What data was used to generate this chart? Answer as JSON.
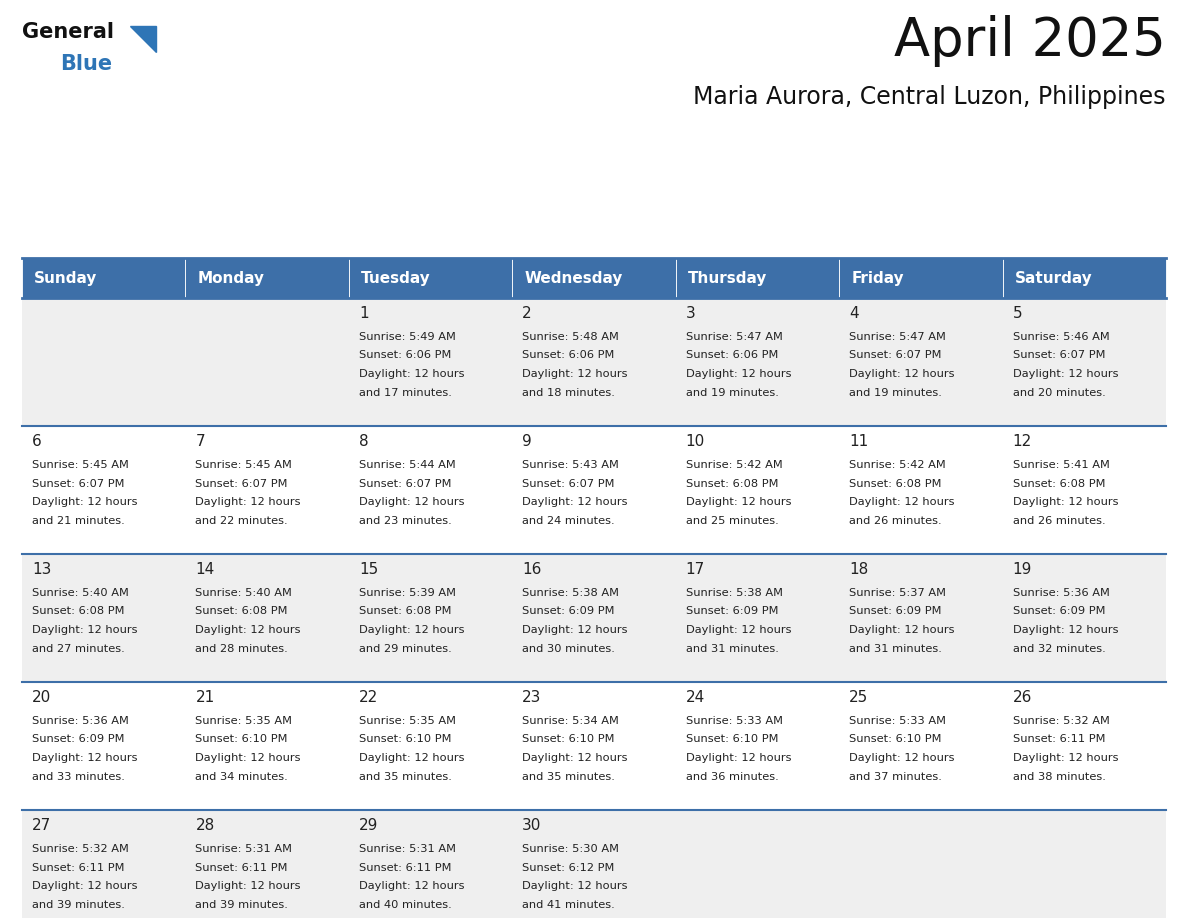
{
  "title": "April 2025",
  "subtitle": "Maria Aurora, Central Luzon, Philippines",
  "days_of_week": [
    "Sunday",
    "Monday",
    "Tuesday",
    "Wednesday",
    "Thursday",
    "Friday",
    "Saturday"
  ],
  "header_bg_color": "#3D6FA8",
  "header_text_color": "#FFFFFF",
  "cell_bg_odd": "#EFEFEF",
  "cell_bg_even": "#FFFFFF",
  "grid_line_color": "#3D6FA8",
  "day_number_color": "#222222",
  "cell_text_color": "#222222",
  "title_color": "#111111",
  "subtitle_color": "#111111",
  "logo_general_color": "#111111",
  "logo_blue_color": "#2E75B6",
  "weeks": [
    {
      "days": [
        {
          "date": "",
          "sunrise": "",
          "sunset": "",
          "daylight": ""
        },
        {
          "date": "",
          "sunrise": "",
          "sunset": "",
          "daylight": ""
        },
        {
          "date": "1",
          "sunrise": "5:49 AM",
          "sunset": "6:06 PM",
          "daylight": "12 hours and 17 minutes."
        },
        {
          "date": "2",
          "sunrise": "5:48 AM",
          "sunset": "6:06 PM",
          "daylight": "12 hours and 18 minutes."
        },
        {
          "date": "3",
          "sunrise": "5:47 AM",
          "sunset": "6:06 PM",
          "daylight": "12 hours and 19 minutes."
        },
        {
          "date": "4",
          "sunrise": "5:47 AM",
          "sunset": "6:07 PM",
          "daylight": "12 hours and 19 minutes."
        },
        {
          "date": "5",
          "sunrise": "5:46 AM",
          "sunset": "6:07 PM",
          "daylight": "12 hours and 20 minutes."
        }
      ]
    },
    {
      "days": [
        {
          "date": "6",
          "sunrise": "5:45 AM",
          "sunset": "6:07 PM",
          "daylight": "12 hours and 21 minutes."
        },
        {
          "date": "7",
          "sunrise": "5:45 AM",
          "sunset": "6:07 PM",
          "daylight": "12 hours and 22 minutes."
        },
        {
          "date": "8",
          "sunrise": "5:44 AM",
          "sunset": "6:07 PM",
          "daylight": "12 hours and 23 minutes."
        },
        {
          "date": "9",
          "sunrise": "5:43 AM",
          "sunset": "6:07 PM",
          "daylight": "12 hours and 24 minutes."
        },
        {
          "date": "10",
          "sunrise": "5:42 AM",
          "sunset": "6:08 PM",
          "daylight": "12 hours and 25 minutes."
        },
        {
          "date": "11",
          "sunrise": "5:42 AM",
          "sunset": "6:08 PM",
          "daylight": "12 hours and 26 minutes."
        },
        {
          "date": "12",
          "sunrise": "5:41 AM",
          "sunset": "6:08 PM",
          "daylight": "12 hours and 26 minutes."
        }
      ]
    },
    {
      "days": [
        {
          "date": "13",
          "sunrise": "5:40 AM",
          "sunset": "6:08 PM",
          "daylight": "12 hours and 27 minutes."
        },
        {
          "date": "14",
          "sunrise": "5:40 AM",
          "sunset": "6:08 PM",
          "daylight": "12 hours and 28 minutes."
        },
        {
          "date": "15",
          "sunrise": "5:39 AM",
          "sunset": "6:08 PM",
          "daylight": "12 hours and 29 minutes."
        },
        {
          "date": "16",
          "sunrise": "5:38 AM",
          "sunset": "6:09 PM",
          "daylight": "12 hours and 30 minutes."
        },
        {
          "date": "17",
          "sunrise": "5:38 AM",
          "sunset": "6:09 PM",
          "daylight": "12 hours and 31 minutes."
        },
        {
          "date": "18",
          "sunrise": "5:37 AM",
          "sunset": "6:09 PM",
          "daylight": "12 hours and 31 minutes."
        },
        {
          "date": "19",
          "sunrise": "5:36 AM",
          "sunset": "6:09 PM",
          "daylight": "12 hours and 32 minutes."
        }
      ]
    },
    {
      "days": [
        {
          "date": "20",
          "sunrise": "5:36 AM",
          "sunset": "6:09 PM",
          "daylight": "12 hours and 33 minutes."
        },
        {
          "date": "21",
          "sunrise": "5:35 AM",
          "sunset": "6:10 PM",
          "daylight": "12 hours and 34 minutes."
        },
        {
          "date": "22",
          "sunrise": "5:35 AM",
          "sunset": "6:10 PM",
          "daylight": "12 hours and 35 minutes."
        },
        {
          "date": "23",
          "sunrise": "5:34 AM",
          "sunset": "6:10 PM",
          "daylight": "12 hours and 35 minutes."
        },
        {
          "date": "24",
          "sunrise": "5:33 AM",
          "sunset": "6:10 PM",
          "daylight": "12 hours and 36 minutes."
        },
        {
          "date": "25",
          "sunrise": "5:33 AM",
          "sunset": "6:10 PM",
          "daylight": "12 hours and 37 minutes."
        },
        {
          "date": "26",
          "sunrise": "5:32 AM",
          "sunset": "6:11 PM",
          "daylight": "12 hours and 38 minutes."
        }
      ]
    },
    {
      "days": [
        {
          "date": "27",
          "sunrise": "5:32 AM",
          "sunset": "6:11 PM",
          "daylight": "12 hours and 39 minutes."
        },
        {
          "date": "28",
          "sunrise": "5:31 AM",
          "sunset": "6:11 PM",
          "daylight": "12 hours and 39 minutes."
        },
        {
          "date": "29",
          "sunrise": "5:31 AM",
          "sunset": "6:11 PM",
          "daylight": "12 hours and 40 minutes."
        },
        {
          "date": "30",
          "sunrise": "5:30 AM",
          "sunset": "6:12 PM",
          "daylight": "12 hours and 41 minutes."
        },
        {
          "date": "",
          "sunrise": "",
          "sunset": "",
          "daylight": ""
        },
        {
          "date": "",
          "sunrise": "",
          "sunset": "",
          "daylight": ""
        },
        {
          "date": "",
          "sunrise": "",
          "sunset": "",
          "daylight": ""
        }
      ]
    }
  ]
}
